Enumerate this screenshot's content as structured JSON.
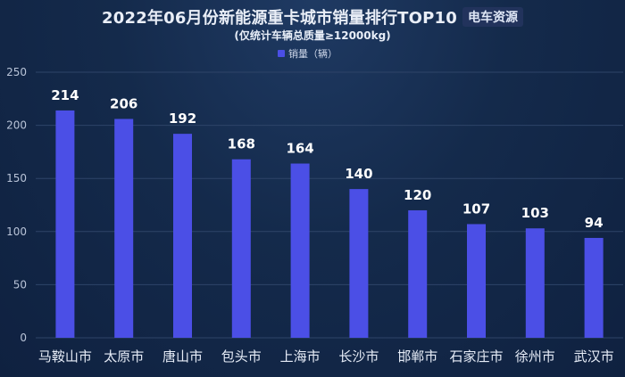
{
  "chart_data": {
    "type": "bar",
    "title": "2022年06月份新能源重卡城市销量排行TOP10",
    "brand": "电车资源",
    "subtitle": "(仅统计车辆总质量≥12000kg)",
    "legend": "销量（辆）",
    "categories": [
      "马鞍山市",
      "太原市",
      "唐山市",
      "包头市",
      "上海市",
      "长沙市",
      "邯郸市",
      "石家庄市",
      "徐州市",
      "武汉市"
    ],
    "series": [
      {
        "name": "销量（辆）",
        "values": [
          214,
          206,
          192,
          168,
          164,
          140,
          120,
          107,
          103,
          94
        ]
      }
    ],
    "ylim": [
      0,
      250
    ],
    "yticks": [
      0,
      50,
      100,
      150,
      200,
      250
    ],
    "grid": true,
    "colors": {
      "bar": "#4b4fe6",
      "label": "#ffffff",
      "grid": "#2e4468",
      "tick": "#b9c4d8"
    }
  }
}
